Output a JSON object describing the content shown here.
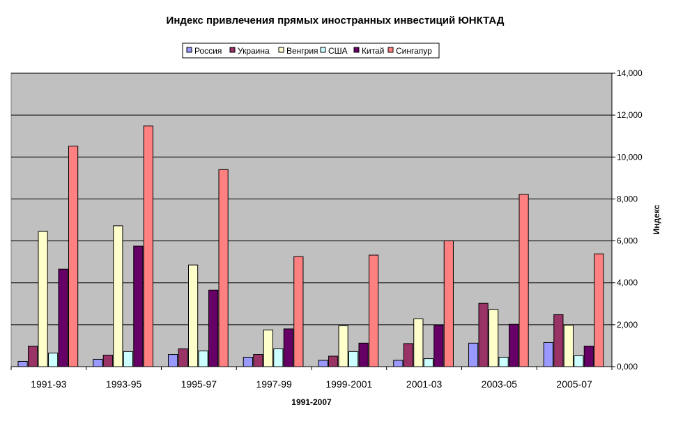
{
  "chart_data": {
    "type": "bar",
    "title": "Индекс привлечения прямых иностранных инвестиций ЮНКТАД",
    "xlabel": "1991-2007",
    "ylabel": "Индекс",
    "ylim": [
      0,
      14
    ],
    "yticks": [
      "0,000",
      "2,000",
      "4,000",
      "6,000",
      "8,000",
      "10,000",
      "12,000",
      "14,000"
    ],
    "ytick_values": [
      0,
      2,
      4,
      6,
      8,
      10,
      12,
      14
    ],
    "y_axis_side": "right",
    "grid": true,
    "legend_position": "top",
    "plot_background": "#c0c0c0",
    "categories": [
      "1991-93",
      "1993-95",
      "1995-97",
      "1997-99",
      "1999-2001",
      "2001-03",
      "2003-05",
      "2005-07"
    ],
    "series": [
      {
        "name": "Россия",
        "color": "#9999ff",
        "values": [
          0.25,
          0.35,
          0.58,
          0.45,
          0.3,
          0.3,
          1.12,
          1.15
        ]
      },
      {
        "name": "Украина",
        "color": "#993366",
        "values": [
          0.98,
          0.55,
          0.85,
          0.58,
          0.5,
          1.1,
          3.02,
          2.48
        ]
      },
      {
        "name": "Венгрия",
        "color": "#ffffcc",
        "values": [
          6.45,
          6.72,
          4.85,
          1.75,
          1.95,
          2.28,
          2.72,
          1.98
        ]
      },
      {
        "name": "США",
        "color": "#ccffff",
        "values": [
          0.65,
          0.72,
          0.75,
          0.85,
          0.72,
          0.38,
          0.45,
          0.52
        ]
      },
      {
        "name": "Китай",
        "color": "#660066",
        "values": [
          4.65,
          5.75,
          3.65,
          1.8,
          1.12,
          1.98,
          2.02,
          0.98
        ]
      },
      {
        "name": "Сингапур",
        "color": "#ff8080",
        "values": [
          10.52,
          11.48,
          9.4,
          5.25,
          5.32,
          6.0,
          8.22,
          5.38
        ]
      }
    ]
  }
}
